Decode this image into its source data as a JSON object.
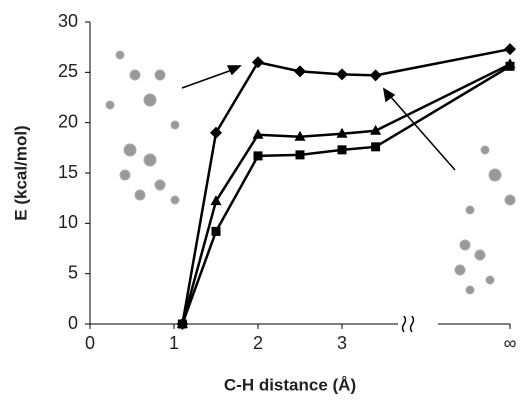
{
  "chart_data": {
    "type": "line",
    "x_label": "C-H distance (Å)",
    "y_label": "E (kcal/mol)",
    "xlim": [
      0,
      5
    ],
    "ylim": [
      0,
      30
    ],
    "xticks": [
      0,
      1,
      2,
      3,
      {
        "value": 5,
        "label": "∞"
      }
    ],
    "yticks": [
      0,
      5,
      10,
      15,
      20,
      25,
      30
    ],
    "series": [
      {
        "color": "#000000",
        "marker": "diamond",
        "x": [
          1.1,
          1.5,
          2,
          2.5,
          3,
          3.4,
          5
        ],
        "values": [
          0,
          19,
          26,
          25.1,
          24.8,
          24.7,
          27.3
        ]
      },
      {
        "color": "#000000",
        "marker": "triangle",
        "x": [
          1.1,
          1.5,
          2,
          2.5,
          3,
          3.4,
          5
        ],
        "values": [
          0,
          12.2,
          18.8,
          18.6,
          18.9,
          19.2,
          25.8
        ]
      },
      {
        "color": "#000000",
        "marker": "square",
        "x": [
          1.1,
          1.5,
          2,
          2.5,
          3,
          3.4,
          5
        ],
        "values": [
          0,
          9.2,
          16.7,
          16.8,
          17.3,
          17.6,
          25.6
        ]
      }
    ]
  }
}
